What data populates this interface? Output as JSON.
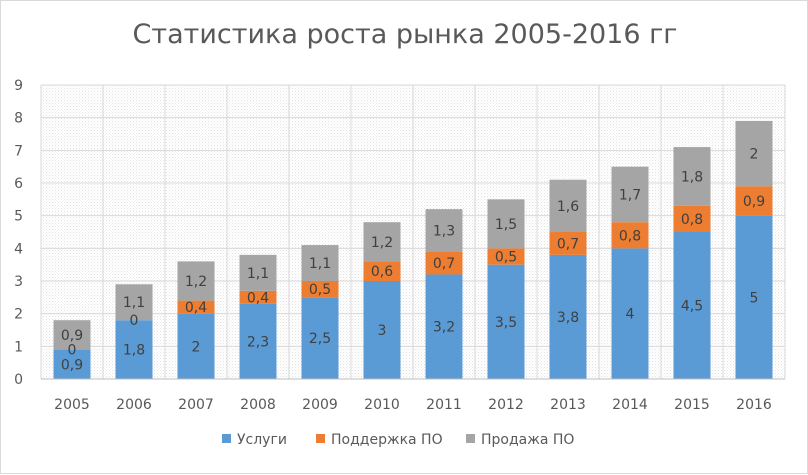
{
  "chart_data": {
    "type": "bar",
    "stacked": true,
    "title": "Статистика роста рынка 2005-2016 гг",
    "xlabel": "",
    "ylabel": "",
    "ylim": [
      0,
      9
    ],
    "yticks": [
      "0",
      "1",
      "2",
      "3",
      "4",
      "5",
      "6",
      "7",
      "8",
      "9"
    ],
    "grid": true,
    "legend_position": "bottom",
    "categories": [
      "2005",
      "2006",
      "2007",
      "2008",
      "2009",
      "2010",
      "2011",
      "2012",
      "2013",
      "2014",
      "2015",
      "2016"
    ],
    "series": [
      {
        "name": "Услуги",
        "color": "#5b9bd5",
        "values": [
          0.9,
          1.8,
          2,
          2.3,
          2.5,
          3,
          3.2,
          3.5,
          3.8,
          4,
          4.5,
          5
        ],
        "labels": [
          "0,9",
          "1,8",
          "2",
          "2,3",
          "2,5",
          "3",
          "3,2",
          "3,5",
          "3,8",
          "4",
          "4,5",
          "5"
        ]
      },
      {
        "name": "Поддержка ПО",
        "color": "#ed7d31",
        "values": [
          0,
          0,
          0.4,
          0.4,
          0.5,
          0.6,
          0.7,
          0.5,
          0.7,
          0.8,
          0.8,
          0.9
        ],
        "labels": [
          "0",
          "0",
          "0,4",
          "0,4",
          "0,5",
          "0,6",
          "0,7",
          "0,5",
          "0,7",
          "0,8",
          "0,8",
          "0,9"
        ]
      },
      {
        "name": "Продажа ПО",
        "color": "#a5a5a5",
        "values": [
          0.9,
          1.1,
          1.2,
          1.1,
          1.1,
          1.2,
          1.3,
          1.5,
          1.6,
          1.7,
          1.8,
          2
        ],
        "labels": [
          "0,9",
          "1,1",
          "1,2",
          "1,1",
          "1,1",
          "1,2",
          "1,3",
          "1,5",
          "1,6",
          "1,7",
          "1,8",
          "2"
        ]
      }
    ]
  }
}
